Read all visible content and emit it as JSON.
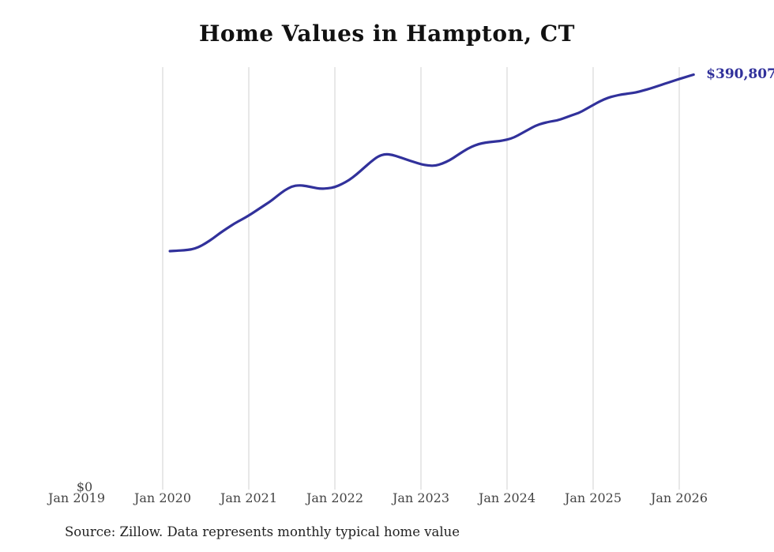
{
  "title": "Home Values in Hampton, CT",
  "source_note": "Source: Zillow. Data represents monthly typical home value",
  "colors": {
    "line": "#31319b",
    "end_label": "#31319b",
    "gridline": "#d2d2d2",
    "title_text": "#111111",
    "tick_label": "#444444",
    "source_text": "#222222",
    "background": "#ffffff"
  },
  "chart_data": {
    "type": "line",
    "title": "Home Values in Hampton, CT",
    "series_name": "Monthly typical home value",
    "unit": "USD",
    "xlabel": "",
    "ylabel": "",
    "grid": "vertical",
    "legend": "none",
    "ylim": [
      0,
      398000
    ],
    "x_ticks": [
      {
        "label": "Jan 2019",
        "month": "2019-01",
        "gridline": false
      },
      {
        "label": "Jan 2020",
        "month": "2020-01",
        "gridline": true
      },
      {
        "label": "Jan 2021",
        "month": "2021-01",
        "gridline": true
      },
      {
        "label": "Jan 2022",
        "month": "2022-01",
        "gridline": true
      },
      {
        "label": "Jan 2023",
        "month": "2023-01",
        "gridline": true
      },
      {
        "label": "Jan 2024",
        "month": "2024-01",
        "gridline": true
      },
      {
        "label": "Jan 2025",
        "month": "2025-01",
        "gridline": true
      },
      {
        "label": "Jan 2026",
        "month": "2026-01",
        "gridline": true
      }
    ],
    "y_ticks": [
      {
        "label": "$0",
        "value": 0
      }
    ],
    "annotation": {
      "text": "$390,807",
      "value": 390807,
      "at": "last-point"
    },
    "months": [
      "2020-02",
      "2020-03",
      "2020-04",
      "2020-05",
      "2020-06",
      "2020-07",
      "2020-08",
      "2020-09",
      "2020-10",
      "2020-11",
      "2020-12",
      "2021-01",
      "2021-02",
      "2021-03",
      "2021-04",
      "2021-05",
      "2021-06",
      "2021-07",
      "2021-08",
      "2021-09",
      "2021-10",
      "2021-11",
      "2021-12",
      "2022-01",
      "2022-02",
      "2022-03",
      "2022-04",
      "2022-05",
      "2022-06",
      "2022-07",
      "2022-08",
      "2022-09",
      "2022-10",
      "2022-11",
      "2022-12",
      "2023-01",
      "2023-02",
      "2023-03",
      "2023-04",
      "2023-05",
      "2023-06",
      "2023-07",
      "2023-08",
      "2023-09",
      "2023-10",
      "2023-11",
      "2023-12",
      "2024-01",
      "2024-02",
      "2024-03",
      "2024-04",
      "2024-05",
      "2024-06",
      "2024-07",
      "2024-08",
      "2024-09",
      "2024-10",
      "2024-11",
      "2024-12",
      "2025-01",
      "2025-02",
      "2025-03",
      "2025-04",
      "2025-05",
      "2025-06",
      "2025-07",
      "2025-08",
      "2025-09",
      "2025-10",
      "2025-11",
      "2025-12",
      "2026-01",
      "2026-02",
      "2026-03"
    ],
    "values": [
      224600,
      225000,
      225400,
      226100,
      228300,
      232000,
      236500,
      241700,
      246200,
      250600,
      254300,
      258100,
      262500,
      267000,
      271400,
      276700,
      281900,
      285600,
      286700,
      285900,
      284500,
      283300,
      283700,
      284800,
      287800,
      291500,
      296700,
      302700,
      308600,
      313800,
      316100,
      315300,
      313100,
      310800,
      308600,
      306400,
      305200,
      304900,
      307100,
      310100,
      314600,
      319000,
      322800,
      325400,
      326800,
      327600,
      328300,
      329500,
      331700,
      335400,
      339100,
      342800,
      345100,
      346600,
      347700,
      349900,
      352500,
      354700,
      358400,
      362200,
      365900,
      368900,
      370700,
      372200,
      373000,
      374100,
      375900,
      377800,
      380000,
      382300,
      384500,
      386700,
      388700,
      390807
    ]
  }
}
